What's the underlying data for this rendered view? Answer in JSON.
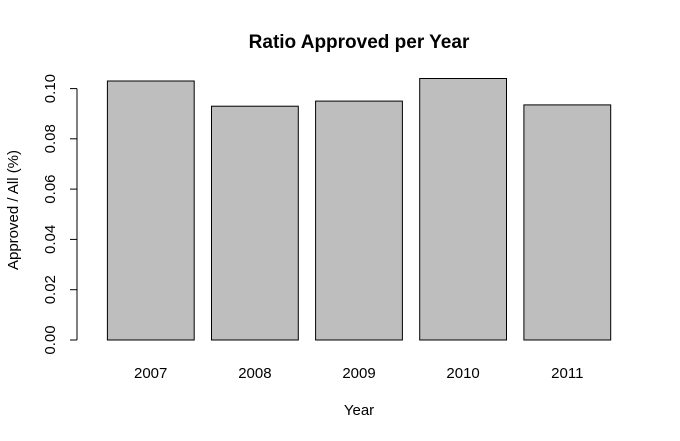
{
  "chart_data": {
    "type": "bar",
    "title": "Ratio Approved per Year",
    "xlabel": "Year",
    "ylabel": "Approved / All (%)",
    "categories": [
      "2007",
      "2008",
      "2009",
      "2010",
      "2011"
    ],
    "values": [
      0.103,
      0.093,
      0.095,
      0.104,
      0.0935
    ],
    "ylim": [
      0,
      0.104
    ],
    "yticks": [
      0.0,
      0.02,
      0.04,
      0.06,
      0.08,
      0.1
    ],
    "ytick_labels": [
      "0.00",
      "0.02",
      "0.04",
      "0.06",
      "0.08",
      "0.10"
    ],
    "bar_color": "#bebebe",
    "grid": false,
    "legend": "none"
  }
}
